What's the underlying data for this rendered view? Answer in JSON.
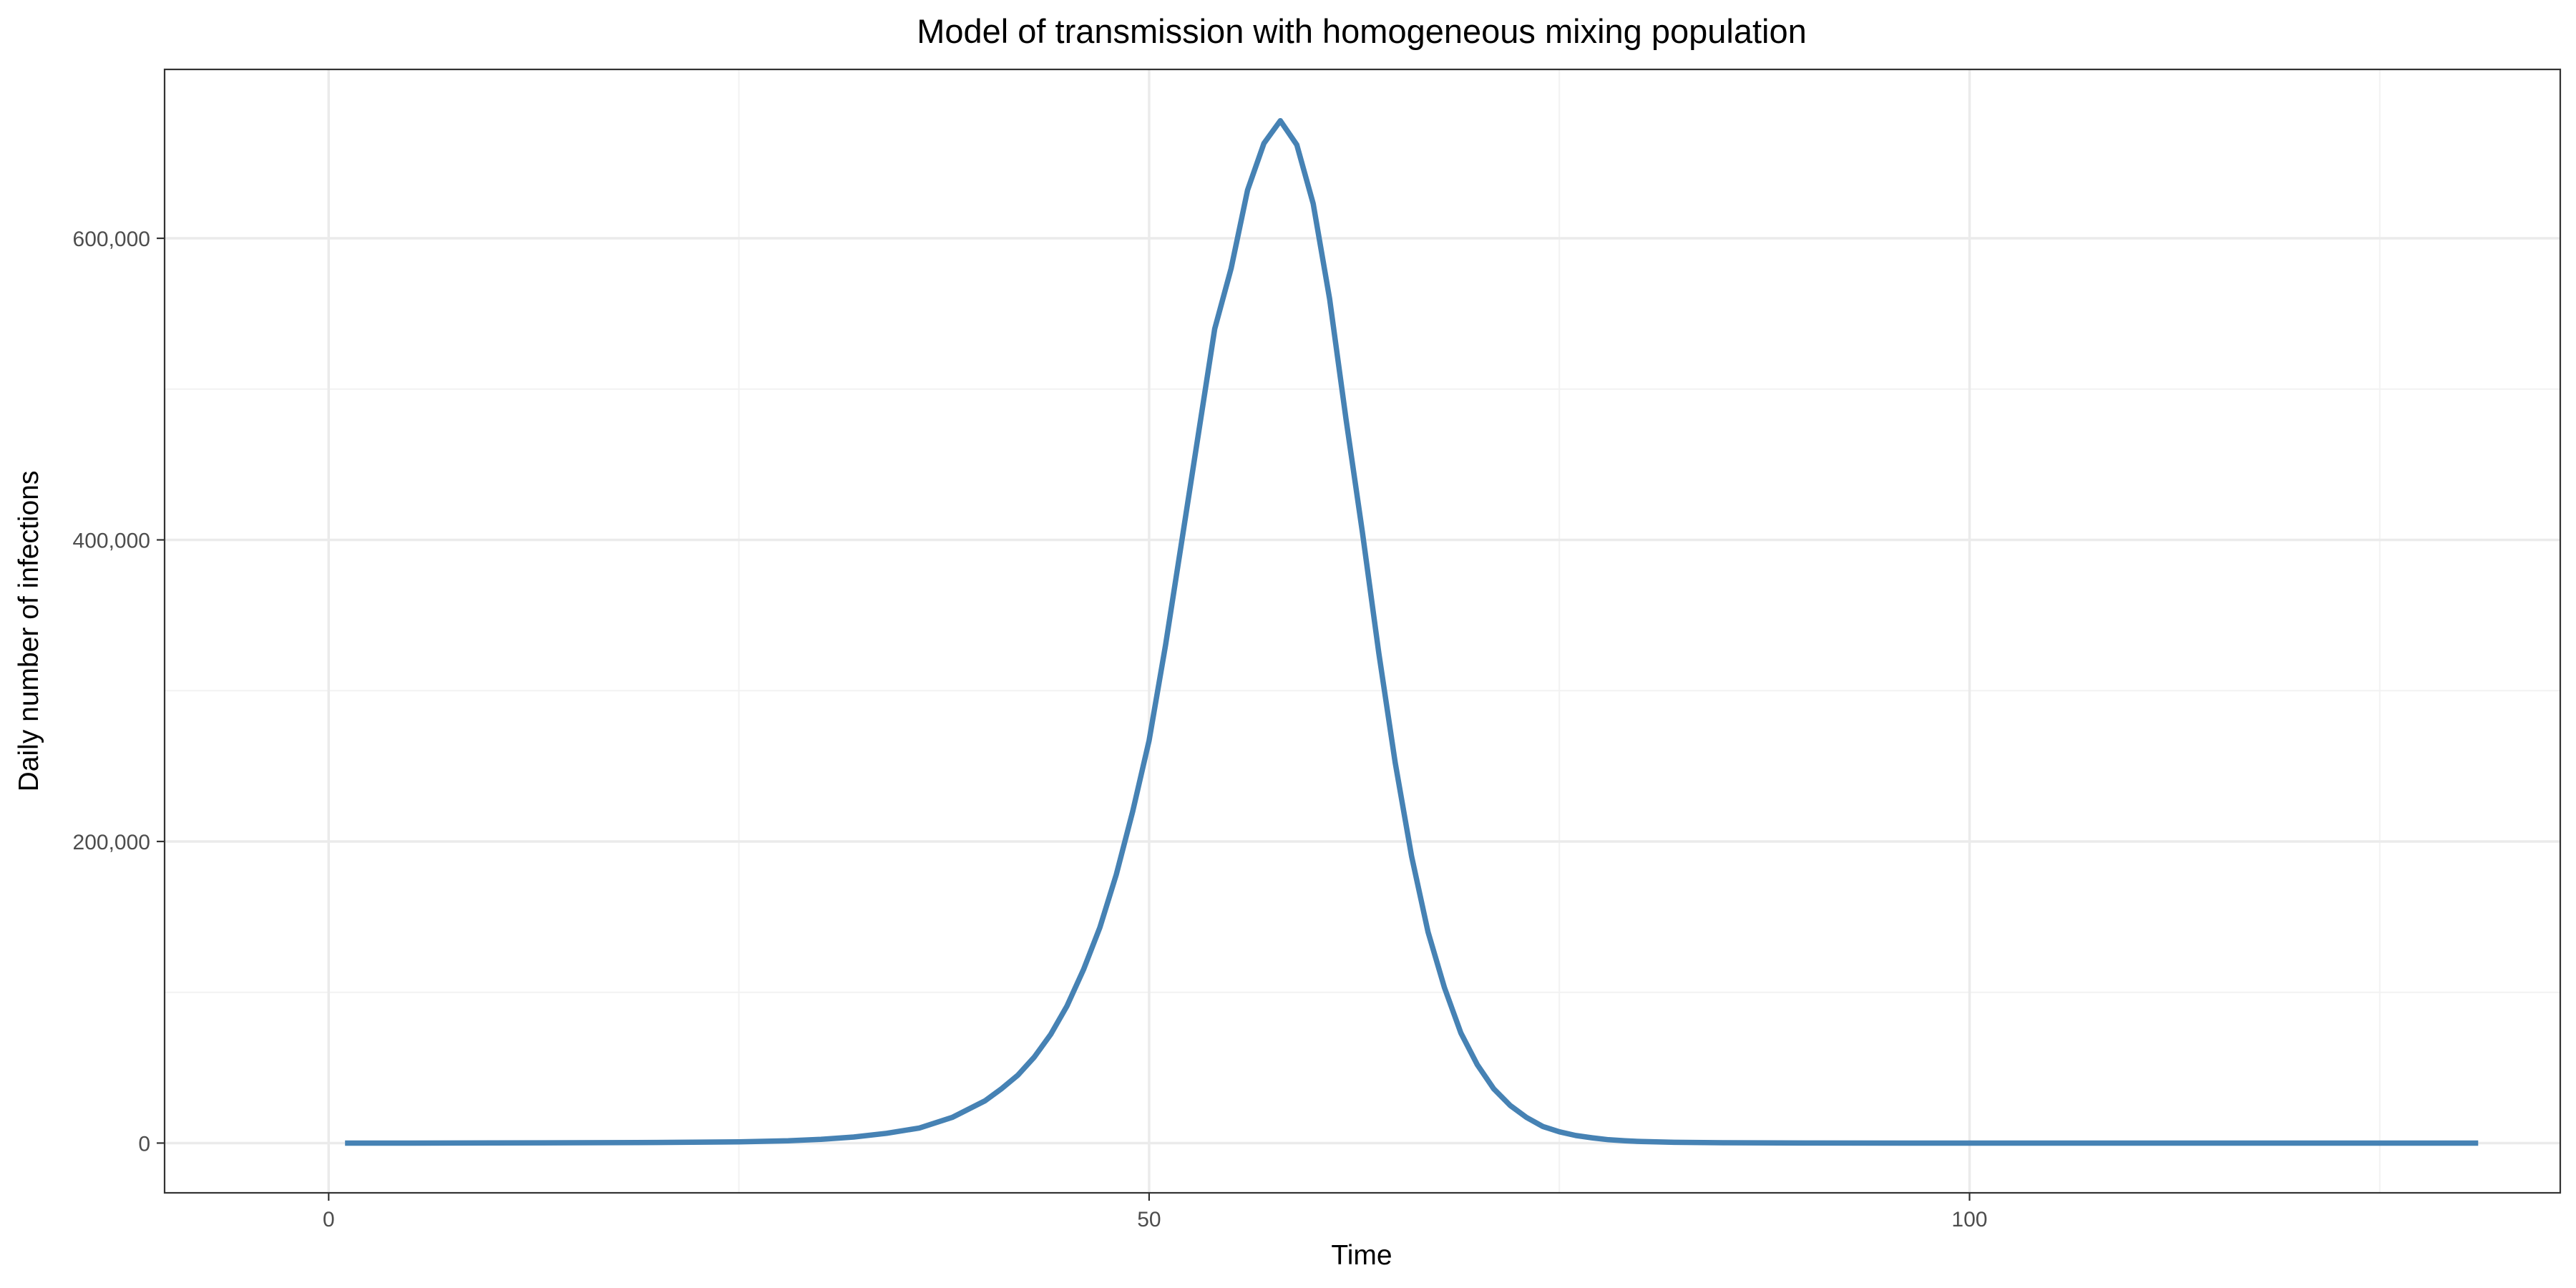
{
  "chart_data": {
    "type": "line",
    "title": "Model of transmission with homogeneous mixing population",
    "xlabel": "Time",
    "ylabel": "Daily number of infections",
    "xlim": [
      -10,
      136
    ],
    "ylim": [
      -33000,
      712000
    ],
    "x_ticks": [
      0,
      50,
      100
    ],
    "x_tick_labels": [
      "0",
      "50",
      "100"
    ],
    "x_minor_ticks": [
      25,
      75,
      125
    ],
    "y_ticks": [
      0,
      200000,
      400000,
      600000
    ],
    "y_tick_labels": [
      "0",
      "200,000",
      "400,000",
      "600,000"
    ],
    "y_minor_ticks": [
      100000,
      300000,
      500000
    ],
    "grid": true,
    "legend": "none",
    "series": [
      {
        "color": "#4682b4",
        "x": [
          1,
          5,
          10,
          15,
          20,
          25,
          28,
          30,
          32,
          34,
          36,
          38,
          40,
          41,
          42,
          43,
          44,
          45,
          46,
          47,
          48,
          49,
          50,
          51,
          52,
          53,
          54,
          55,
          56,
          57,
          58,
          59,
          60,
          61,
          62,
          63,
          64,
          65,
          66,
          67,
          68,
          69,
          70,
          71,
          72,
          73,
          74,
          75,
          76,
          77,
          78,
          79,
          80,
          82,
          85,
          90,
          100,
          110,
          120,
          131
        ],
        "y": [
          0,
          0,
          100,
          200,
          400,
          800,
          1500,
          2500,
          4000,
          6500,
          10000,
          17000,
          28000,
          36000,
          45000,
          57000,
          72000,
          91000,
          115000,
          143000,
          178000,
          220000,
          267000,
          330000,
          400000,
          470000,
          540000,
          580000,
          632000,
          663000,
          678000,
          662000,
          623000,
          560000,
          480000,
          405000,
          325000,
          252000,
          190000,
          140000,
          103000,
          73000,
          52000,
          36000,
          25000,
          17000,
          11000,
          7500,
          5000,
          3500,
          2200,
          1500,
          1000,
          500,
          200,
          50,
          0,
          0,
          0,
          0
        ]
      }
    ]
  }
}
